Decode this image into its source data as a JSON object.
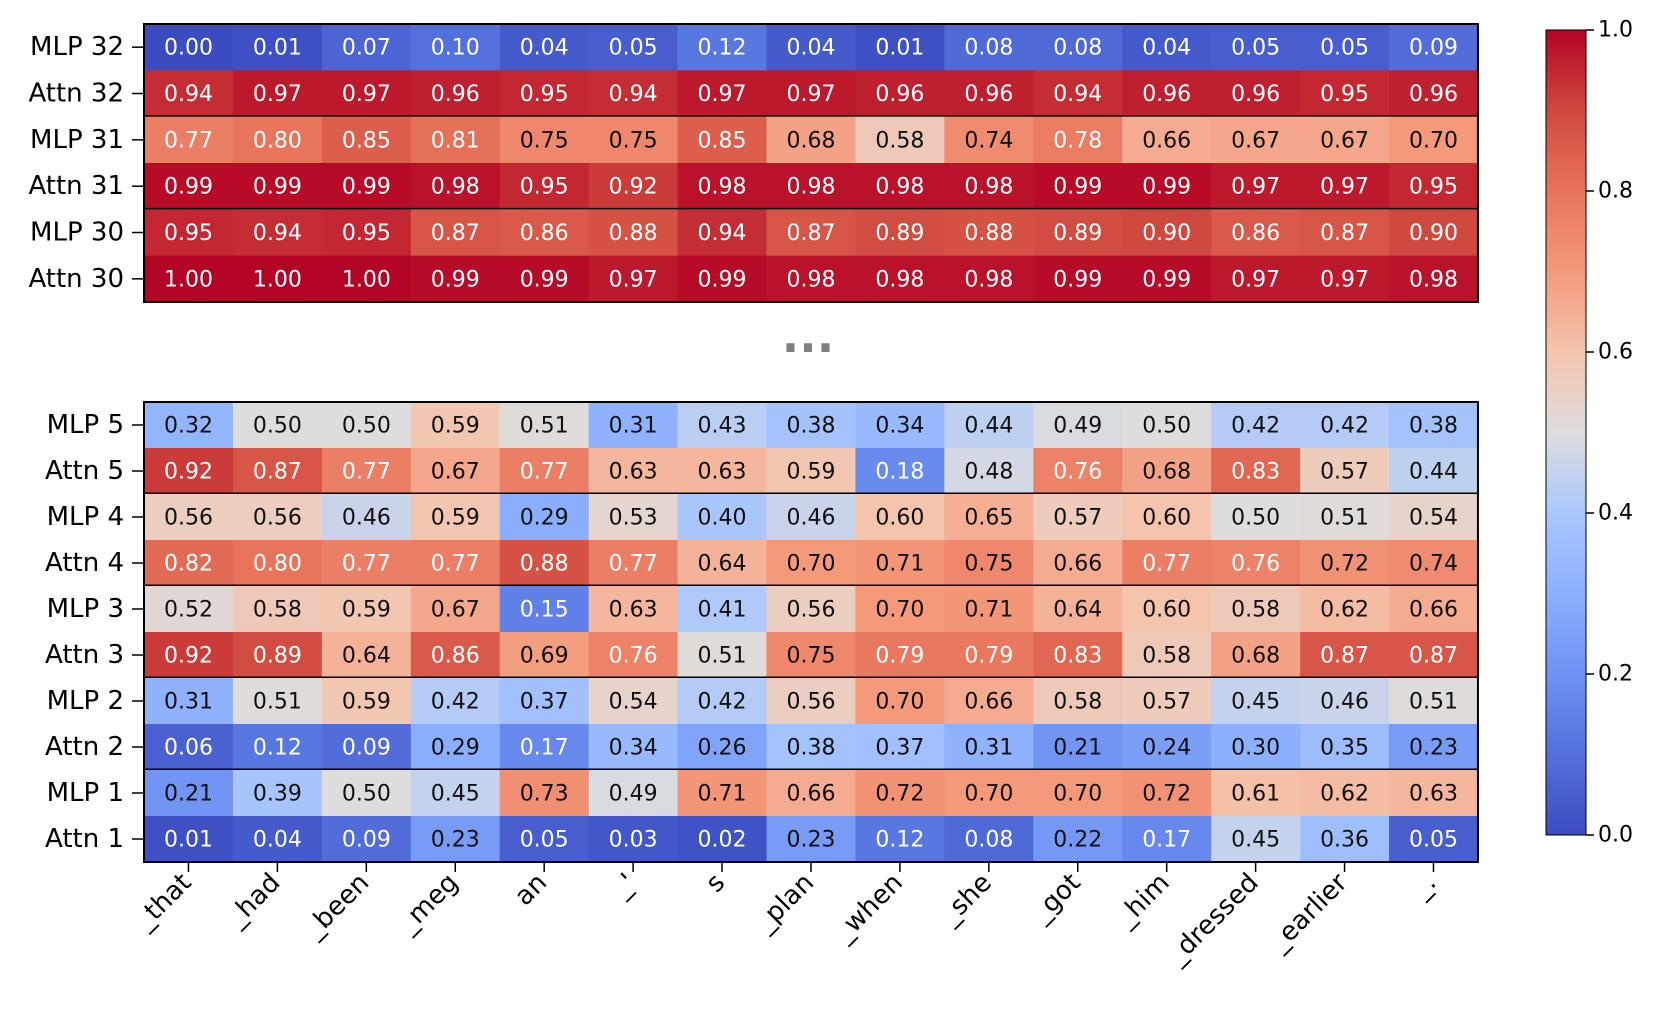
{
  "chart_data": {
    "type": "heatmap",
    "colormap": "coolwarm",
    "vmin": 0.0,
    "vmax": 1.0,
    "x_tokens": [
      "_that",
      "_had",
      "_been",
      "_meg",
      "an",
      "_'",
      "s",
      "_plan",
      "_when",
      "_she",
      "_got",
      "_him",
      "_dressed",
      "_earlier",
      "_."
    ],
    "ellipsis": "...",
    "panels": [
      {
        "name": "top",
        "rows": [
          {
            "label": "MLP 32",
            "values": [
              0.0,
              0.01,
              0.07,
              0.1,
              0.04,
              0.05,
              0.12,
              0.04,
              0.01,
              0.08,
              0.08,
              0.04,
              0.05,
              0.05,
              0.09
            ]
          },
          {
            "label": "Attn 32",
            "values": [
              0.94,
              0.97,
              0.97,
              0.96,
              0.95,
              0.94,
              0.97,
              0.97,
              0.96,
              0.96,
              0.94,
              0.96,
              0.96,
              0.95,
              0.96
            ]
          },
          {
            "label": "MLP 31",
            "values": [
              0.77,
              0.8,
              0.85,
              0.81,
              0.75,
              0.75,
              0.85,
              0.68,
              0.58,
              0.74,
              0.78,
              0.66,
              0.67,
              0.67,
              0.7
            ]
          },
          {
            "label": "Attn 31",
            "values": [
              0.99,
              0.99,
              0.99,
              0.98,
              0.95,
              0.92,
              0.98,
              0.98,
              0.98,
              0.98,
              0.99,
              0.99,
              0.97,
              0.97,
              0.95
            ]
          },
          {
            "label": "MLP 30",
            "values": [
              0.95,
              0.94,
              0.95,
              0.87,
              0.86,
              0.88,
              0.94,
              0.87,
              0.89,
              0.88,
              0.89,
              0.9,
              0.86,
              0.87,
              0.9
            ]
          },
          {
            "label": "Attn 30",
            "values": [
              1.0,
              1.0,
              1.0,
              0.99,
              0.99,
              0.97,
              0.99,
              0.98,
              0.98,
              0.98,
              0.99,
              0.99,
              0.97,
              0.97,
              0.98
            ]
          }
        ]
      },
      {
        "name": "bottom",
        "rows": [
          {
            "label": "MLP 5",
            "values": [
              0.32,
              0.5,
              0.5,
              0.59,
              0.51,
              0.31,
              0.43,
              0.38,
              0.34,
              0.44,
              0.49,
              0.5,
              0.42,
              0.42,
              0.38
            ]
          },
          {
            "label": "Attn 5",
            "values": [
              0.92,
              0.87,
              0.77,
              0.67,
              0.77,
              0.63,
              0.63,
              0.59,
              0.18,
              0.48,
              0.76,
              0.68,
              0.83,
              0.57,
              0.44
            ]
          },
          {
            "label": "MLP 4",
            "values": [
              0.56,
              0.56,
              0.46,
              0.59,
              0.29,
              0.53,
              0.4,
              0.46,
              0.6,
              0.65,
              0.57,
              0.6,
              0.5,
              0.51,
              0.54
            ]
          },
          {
            "label": "Attn 4",
            "values": [
              0.82,
              0.8,
              0.77,
              0.77,
              0.88,
              0.77,
              0.64,
              0.7,
              0.71,
              0.75,
              0.66,
              0.77,
              0.76,
              0.72,
              0.74
            ]
          },
          {
            "label": "MLP 3",
            "values": [
              0.52,
              0.58,
              0.59,
              0.67,
              0.15,
              0.63,
              0.41,
              0.56,
              0.7,
              0.71,
              0.64,
              0.6,
              0.58,
              0.62,
              0.66
            ]
          },
          {
            "label": "Attn 3",
            "values": [
              0.92,
              0.89,
              0.64,
              0.86,
              0.69,
              0.76,
              0.51,
              0.75,
              0.79,
              0.79,
              0.83,
              0.58,
              0.68,
              0.87,
              0.87
            ]
          },
          {
            "label": "MLP 2",
            "values": [
              0.31,
              0.51,
              0.59,
              0.42,
              0.37,
              0.54,
              0.42,
              0.56,
              0.7,
              0.66,
              0.58,
              0.57,
              0.45,
              0.46,
              0.51
            ]
          },
          {
            "label": "Attn 2",
            "values": [
              0.06,
              0.12,
              0.09,
              0.29,
              0.17,
              0.34,
              0.26,
              0.38,
              0.37,
              0.31,
              0.21,
              0.24,
              0.3,
              0.35,
              0.23
            ]
          },
          {
            "label": "MLP 1",
            "values": [
              0.21,
              0.39,
              0.5,
              0.45,
              0.73,
              0.49,
              0.71,
              0.66,
              0.72,
              0.7,
              0.7,
              0.72,
              0.61,
              0.62,
              0.63
            ]
          },
          {
            "label": "Attn 1",
            "values": [
              0.01,
              0.04,
              0.09,
              0.23,
              0.05,
              0.03,
              0.02,
              0.23,
              0.12,
              0.08,
              0.22,
              0.17,
              0.45,
              0.36,
              0.05
            ]
          }
        ]
      }
    ],
    "colorbar": {
      "ticks": [
        0.0,
        0.2,
        0.4,
        0.6,
        0.8,
        1.0
      ],
      "tick_labels": [
        "0.0",
        "0.2",
        "0.4",
        "0.6",
        "0.8",
        "1.0"
      ]
    }
  }
}
